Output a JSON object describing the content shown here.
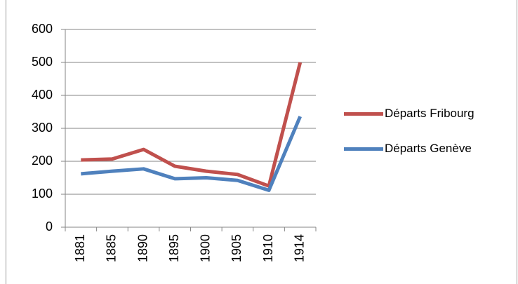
{
  "chart_data": {
    "type": "line",
    "categories": [
      "1881",
      "1885",
      "1890",
      "1895",
      "1900",
      "1905",
      "1910",
      "1914"
    ],
    "series": [
      {
        "name": "Départs Fribourg",
        "color": "#c0504d",
        "values": [
          204,
          207,
          236,
          185,
          170,
          160,
          125,
          500
        ]
      },
      {
        "name": "Départs Genève",
        "color": "#4f81bd",
        "values": [
          162,
          170,
          177,
          147,
          150,
          142,
          112,
          336
        ]
      }
    ],
    "ylim": [
      0,
      600
    ],
    "yticks": [
      0,
      100,
      200,
      300,
      400,
      500,
      600
    ],
    "grid": true,
    "legend": "right"
  }
}
